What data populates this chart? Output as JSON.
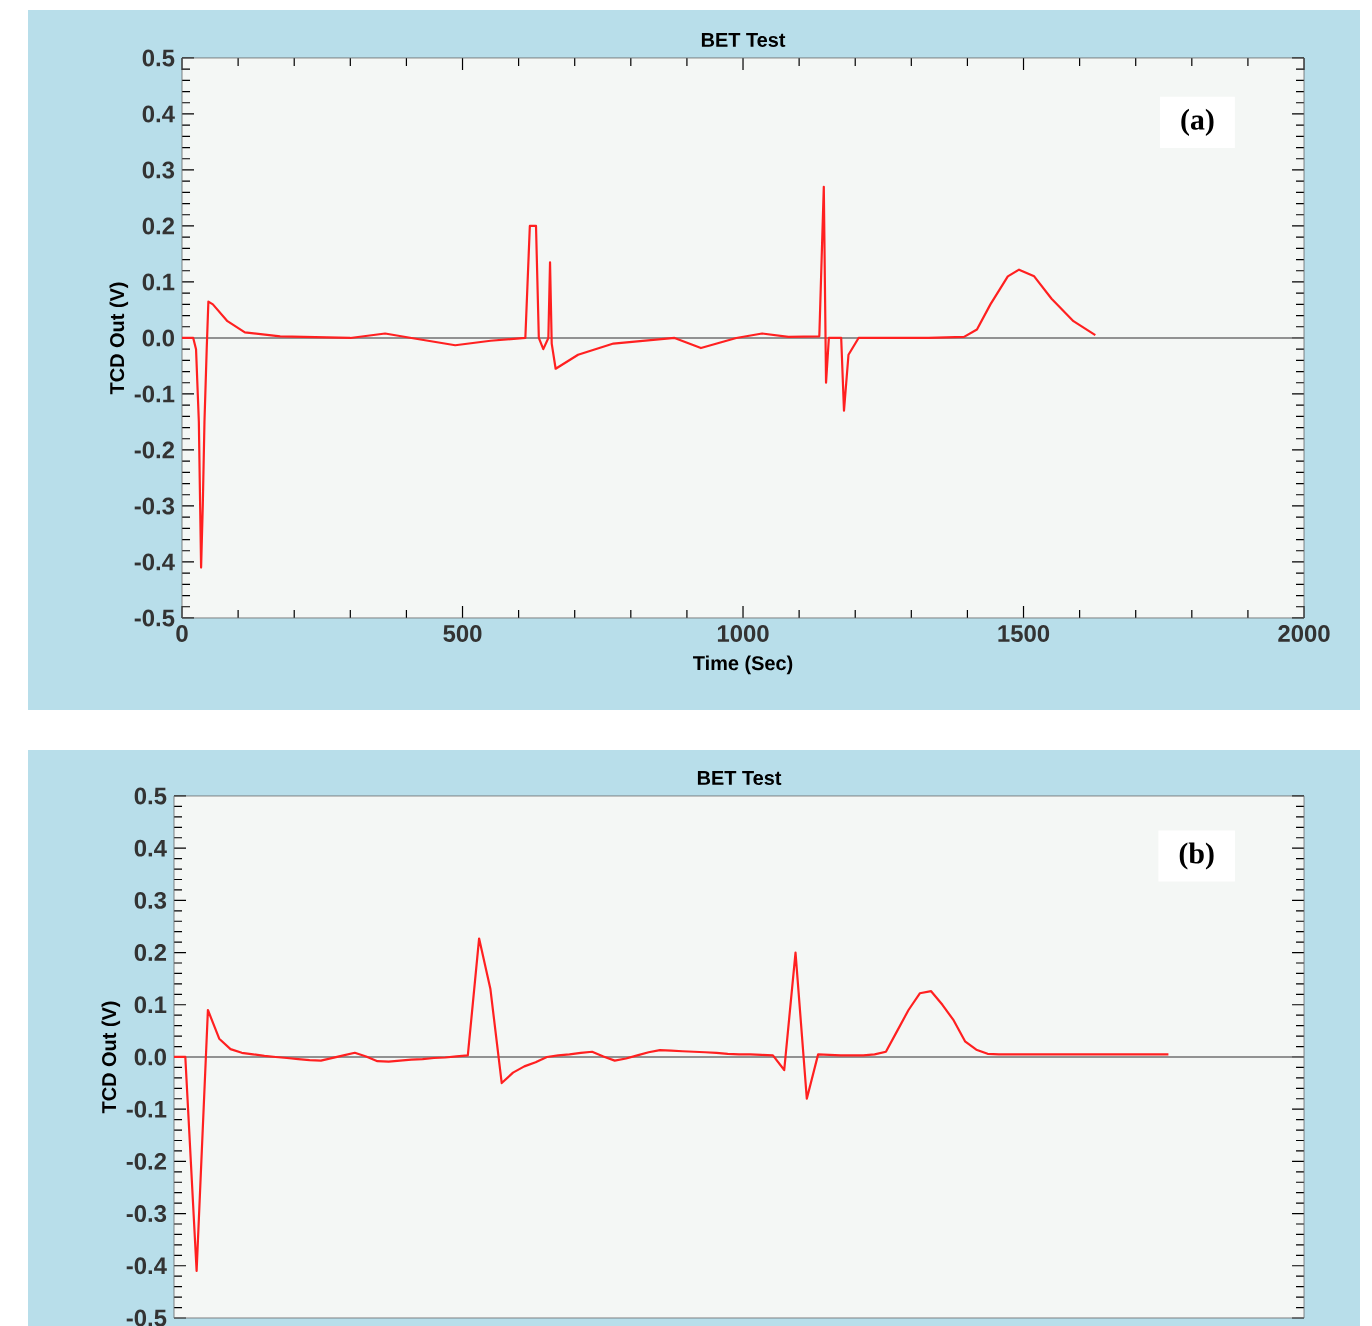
{
  "chart_data": [
    {
      "type": "line",
      "title": "BET Test",
      "xlabel": "Time (Sec)",
      "ylabel": "TCD Out (V)",
      "color": "#ff2020",
      "x": [
        0,
        20,
        25,
        30,
        34,
        37,
        40,
        44,
        47,
        55,
        81,
        112,
        175,
        300,
        362,
        409,
        487,
        550,
        612,
        620,
        631,
        636,
        644,
        653,
        656,
        659,
        666,
        706,
        769,
        878,
        925,
        988,
        1034,
        1081,
        1136,
        1144,
        1148,
        1153,
        1175,
        1180,
        1188,
        1206,
        1331,
        1394,
        1417,
        1441,
        1472,
        1492,
        1519,
        1550,
        1589,
        1628
      ],
      "values": [
        0,
        0,
        -0.02,
        -0.15,
        -0.41,
        -0.3,
        -0.15,
        -0.02,
        0.065,
        0.06,
        0.03,
        0.01,
        0.003,
        0,
        0.008,
        0,
        -0.013,
        -0.005,
        0,
        0.2,
        0.2,
        0,
        -0.02,
        0,
        0.135,
        -0.01,
        -0.055,
        -0.03,
        -0.01,
        0,
        -0.018,
        0,
        0.008,
        0.002,
        0.003,
        0.27,
        -0.08,
        0,
        0,
        -0.13,
        -0.03,
        0,
        0,
        0.002,
        0.015,
        0.06,
        0.11,
        0.122,
        0.11,
        0.07,
        0.03,
        0.005
      ],
      "xlim": [
        0,
        2000
      ],
      "xticks": [
        0,
        500,
        1000,
        1500,
        2000
      ],
      "ylim": [
        -0.5,
        0.5
      ],
      "yticks": [
        -0.5,
        -0.4,
        -0.3,
        -0.2,
        -0.1,
        {
          "value": 0,
          "label": "0.0"
        },
        0.1,
        0.2,
        0.3,
        0.4,
        0.5
      ],
      "ref_lines": [
        {
          "axis": "y",
          "value": 0,
          "color": "#707070"
        }
      ],
      "annotations": [
        "(a)"
      ]
    },
    {
      "type": "line",
      "title": "BET Test",
      "ylabel": "TCD Out (V)",
      "color": "#ff2020",
      "categories": [
        null,
        null,
        null,
        null,
        null,
        null,
        null,
        null,
        null,
        null,
        null,
        null,
        null,
        null,
        null,
        null,
        null,
        null,
        null,
        null,
        null,
        null,
        null,
        null,
        null,
        null,
        null,
        null,
        null,
        null,
        null,
        null,
        null,
        null,
        null,
        null,
        null,
        null,
        null,
        null,
        null,
        null,
        null,
        null,
        null,
        null,
        null,
        null,
        null,
        null,
        null,
        null,
        null,
        null,
        null,
        null,
        null,
        null,
        null,
        null,
        null,
        null,
        null,
        null,
        null,
        null,
        null,
        null,
        null,
        null,
        null,
        null,
        null,
        null,
        null,
        null,
        null,
        null,
        null,
        null,
        null,
        null,
        null,
        null,
        null,
        null,
        null,
        null,
        null,
        null,
        null,
        null,
        null,
        null,
        null,
        null,
        null,
        null,
        null,
        null,
        null
      ],
      "values": [
        0,
        0,
        -0.41,
        0.09,
        0.035,
        0.015,
        0.008,
        0.005,
        0.002,
        0,
        -0.002,
        -0.004,
        -0.006,
        -0.007,
        -0.002,
        0.003,
        0.008,
        0.001,
        -0.008,
        -0.009,
        -0.007,
        -0.005,
        -0.004,
        -0.002,
        -0.001,
        0.001,
        0.003,
        0.227,
        0.13,
        -0.05,
        -0.03,
        -0.018,
        -0.01,
        0,
        0.003,
        0.005,
        0.008,
        0.01,
        0.001,
        -0.007,
        -0.003,
        0.003,
        0.009,
        0.013,
        0.012,
        0.011,
        0.01,
        0.009,
        0.008,
        0.006,
        0.005,
        0.005,
        0.004,
        0.003,
        -0.025,
        0.2,
        -0.08,
        0.005,
        0.004,
        0.003,
        0.003,
        0.003,
        0.005,
        0.01,
        0.05,
        0.09,
        0.122,
        0.126,
        0.1,
        0.07,
        0.03,
        0.014,
        0.006,
        0.005,
        0.005,
        0.005,
        0.005,
        0.005,
        0.005,
        0.005,
        0.005,
        0.005,
        0.005,
        0.005,
        0.005,
        0.005,
        0.005,
        0.005,
        0.005,
        null,
        null,
        null,
        null,
        null,
        null,
        null,
        null,
        null,
        null,
        null,
        null
      ],
      "ylim": [
        -0.5,
        0.5
      ],
      "yticks": [
        -0.5,
        -0.4,
        -0.3,
        -0.2,
        -0.1,
        {
          "value": 0,
          "label": "0.0"
        },
        0.1,
        0.2,
        0.3,
        0.4,
        0.5
      ],
      "ref_lines": [
        {
          "axis": "y",
          "value": 0,
          "color": "#707070"
        }
      ],
      "annotations": [
        "(b)"
      ]
    }
  ]
}
